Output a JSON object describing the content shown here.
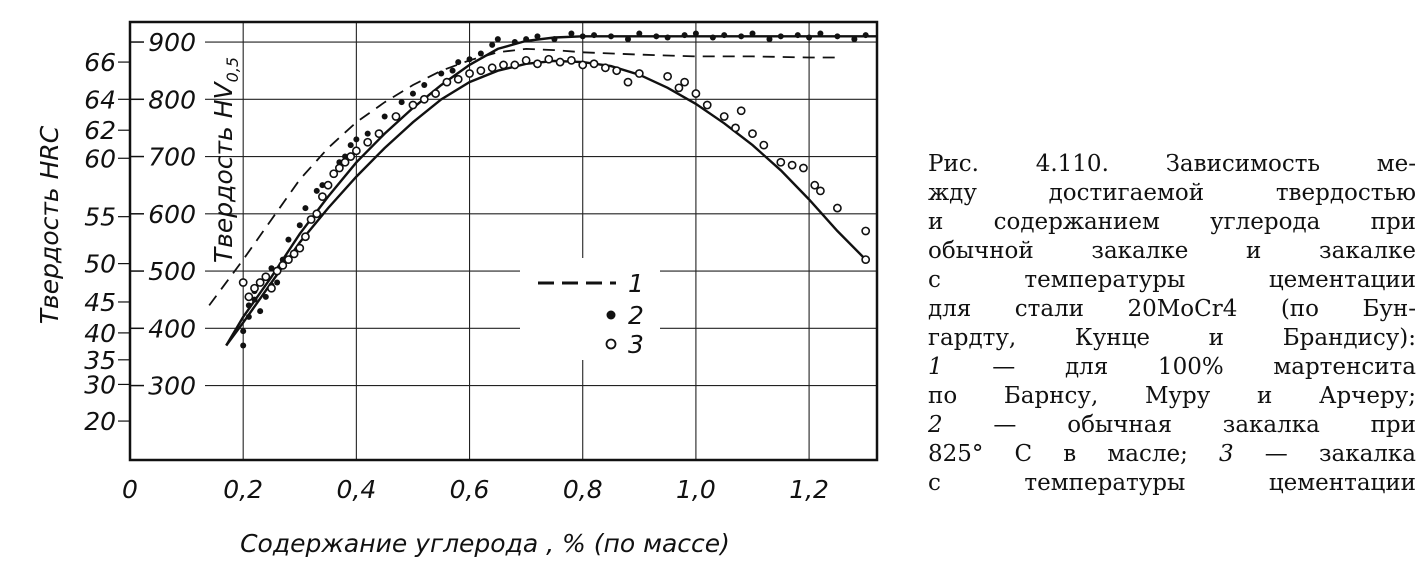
{
  "chart_data": {
    "type": "scatter",
    "title": "",
    "xlabel": "Содержание углерода , % (по массе)",
    "ylabel_left_outer": "Твердость HRC",
    "ylabel_left_inner": "Твердость HV",
    "ylabel_left_inner_sub": "0,5",
    "xlim": [
      0,
      1.32
    ],
    "hv_lim": [
      170,
      935
    ],
    "x_ticks": [
      {
        "value": 0,
        "label": "0"
      },
      {
        "value": 0.2,
        "label": "0,2"
      },
      {
        "value": 0.4,
        "label": "0,4"
      },
      {
        "value": 0.6,
        "label": "0,6"
      },
      {
        "value": 0.8,
        "label": "0,8"
      },
      {
        "value": 1.0,
        "label": "1,0"
      },
      {
        "value": 1.2,
        "label": "1,2"
      }
    ],
    "hv_ticks": [
      {
        "value": 300,
        "label": "300"
      },
      {
        "value": 400,
        "label": "400"
      },
      {
        "value": 500,
        "label": "500"
      },
      {
        "value": 600,
        "label": "600"
      },
      {
        "value": 700,
        "label": "700"
      },
      {
        "value": 800,
        "label": "800"
      },
      {
        "value": 900,
        "label": "900"
      }
    ],
    "hrc_ticks": [
      {
        "label": "20",
        "hv": 238
      },
      {
        "label": "30",
        "hv": 302
      },
      {
        "label": "35",
        "hv": 345
      },
      {
        "label": "40",
        "hv": 392
      },
      {
        "label": "45",
        "hv": 446
      },
      {
        "label": "50",
        "hv": 513
      },
      {
        "label": "55",
        "hv": 595
      },
      {
        "label": "60",
        "hv": 697
      },
      {
        "label": "62",
        "hv": 746
      },
      {
        "label": "64",
        "hv": 800
      },
      {
        "label": "66",
        "hv": 865
      }
    ],
    "grid": true,
    "legend": [
      {
        "key": "1",
        "marker": "dashed-line"
      },
      {
        "key": "2",
        "marker": "filled-circle"
      },
      {
        "key": "3",
        "marker": "open-circle"
      }
    ],
    "series": [
      {
        "key": "1",
        "style": "dashed",
        "x": [
          0.14,
          0.2,
          0.25,
          0.3,
          0.35,
          0.4,
          0.45,
          0.5,
          0.55,
          0.6,
          0.65,
          0.7,
          0.75,
          0.8,
          0.9,
          1.0,
          1.1,
          1.2,
          1.25
        ],
        "y": [
          440,
          520,
          590,
          660,
          715,
          760,
          795,
          825,
          850,
          868,
          882,
          888,
          886,
          882,
          878,
          875,
          875,
          873,
          873
        ]
      },
      {
        "key": "2-curve",
        "style": "solid",
        "x": [
          0.17,
          0.2,
          0.25,
          0.3,
          0.35,
          0.4,
          0.45,
          0.5,
          0.55,
          0.6,
          0.65,
          0.7,
          0.75,
          0.8,
          0.9,
          1.0,
          1.1,
          1.2,
          1.32
        ],
        "y": [
          370,
          420,
          490,
          565,
          630,
          690,
          740,
          785,
          825,
          860,
          888,
          902,
          908,
          910,
          910,
          910,
          910,
          910,
          910
        ]
      },
      {
        "key": "3-curve",
        "style": "solid",
        "x": [
          0.17,
          0.2,
          0.25,
          0.3,
          0.35,
          0.4,
          0.45,
          0.5,
          0.55,
          0.6,
          0.65,
          0.7,
          0.75,
          0.8,
          0.85,
          0.9,
          0.95,
          1.0,
          1.05,
          1.1,
          1.15,
          1.2,
          1.25,
          1.3
        ],
        "y": [
          370,
          410,
          480,
          550,
          610,
          665,
          715,
          760,
          800,
          830,
          850,
          862,
          867,
          865,
          858,
          843,
          820,
          792,
          758,
          720,
          676,
          625,
          570,
          520
        ]
      },
      {
        "key": "2",
        "marker": "filled-circle",
        "x": [
          0.2,
          0.2,
          0.21,
          0.21,
          0.22,
          0.22,
          0.23,
          0.24,
          0.25,
          0.25,
          0.26,
          0.27,
          0.28,
          0.3,
          0.31,
          0.33,
          0.34,
          0.36,
          0.37,
          0.38,
          0.39,
          0.4,
          0.42,
          0.45,
          0.48,
          0.5,
          0.52,
          0.55,
          0.57,
          0.58,
          0.6,
          0.62,
          0.64,
          0.65,
          0.68,
          0.7,
          0.72,
          0.75,
          0.78,
          0.8,
          0.82,
          0.85,
          0.88,
          0.9,
          0.93,
          0.95,
          0.98,
          1.0,
          1.03,
          1.05,
          1.08,
          1.1,
          1.13,
          1.15,
          1.18,
          1.2,
          1.22,
          1.25,
          1.28,
          1.3
        ],
        "y": [
          370,
          395,
          420,
          440,
          450,
          465,
          430,
          455,
          475,
          505,
          480,
          520,
          555,
          580,
          610,
          640,
          650,
          670,
          690,
          700,
          720,
          730,
          740,
          770,
          795,
          810,
          825,
          845,
          850,
          865,
          870,
          880,
          895,
          905,
          900,
          905,
          910,
          905,
          915,
          910,
          912,
          910,
          905,
          915,
          910,
          908,
          912,
          915,
          908,
          912,
          910,
          915,
          905,
          910,
          912,
          908,
          915,
          910,
          905,
          912
        ]
      },
      {
        "key": "3",
        "marker": "open-circle",
        "x": [
          0.2,
          0.21,
          0.22,
          0.23,
          0.24,
          0.25,
          0.26,
          0.27,
          0.28,
          0.29,
          0.3,
          0.31,
          0.32,
          0.33,
          0.34,
          0.35,
          0.36,
          0.37,
          0.38,
          0.39,
          0.4,
          0.42,
          0.44,
          0.47,
          0.5,
          0.52,
          0.54,
          0.56,
          0.58,
          0.6,
          0.62,
          0.64,
          0.66,
          0.68,
          0.7,
          0.72,
          0.74,
          0.76,
          0.78,
          0.8,
          0.82,
          0.84,
          0.86,
          0.88,
          0.9,
          0.95,
          0.97,
          0.98,
          1.0,
          1.02,
          1.05,
          1.07,
          1.08,
          1.1,
          1.12,
          1.15,
          1.17,
          1.19,
          1.21,
          1.22,
          1.25,
          1.3,
          1.3
        ],
        "y": [
          480,
          455,
          470,
          480,
          490,
          470,
          500,
          510,
          520,
          530,
          540,
          560,
          590,
          600,
          630,
          650,
          670,
          680,
          690,
          700,
          710,
          725,
          740,
          770,
          790,
          800,
          810,
          830,
          835,
          845,
          850,
          855,
          860,
          860,
          868,
          862,
          870,
          865,
          868,
          860,
          862,
          855,
          850,
          830,
          845,
          840,
          820,
          830,
          810,
          790,
          770,
          750,
          780,
          740,
          720,
          690,
          685,
          680,
          650,
          640,
          610,
          570,
          520
        ]
      }
    ]
  },
  "caption": {
    "lines": [
      "Рис. 4.110. Зависимость ме-",
      "жду достигаемой твердостью",
      "и содержанием углерода при",
      "обычной закалке и закалке",
      "с температуры цементации",
      "для стали 20MoCr4 (по Бун-",
      "гардту, Кунце и Брандису):"
    ],
    "items": [
      {
        "num": "1",
        "text": " — для 100% мартенсита"
      },
      {
        "num": "",
        "text": "по Барнсу, Муру и Арчеру;"
      },
      {
        "num": "2",
        "text": " — обычная закалка при"
      },
      {
        "num": "",
        "text": "825° С в масле; "
      },
      {
        "num": "",
        "text": "с температуры цементации"
      }
    ],
    "item_tail_num": "3",
    "item_tail_text": " — закалка"
  }
}
